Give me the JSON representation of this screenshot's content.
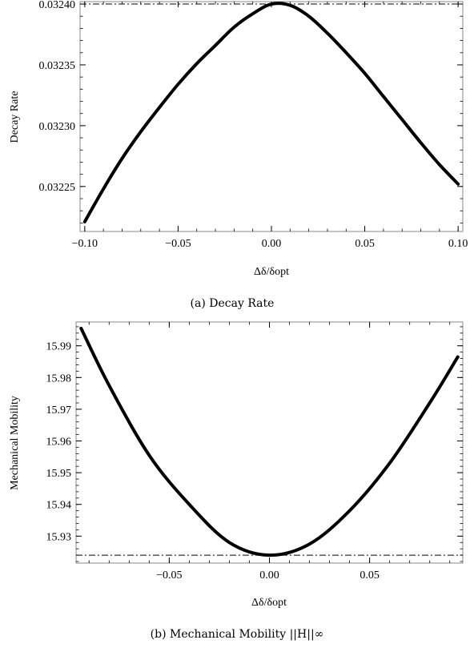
{
  "chart_data": [
    {
      "type": "line",
      "caption": "(a) Decay Rate",
      "xlabel": "Δδ/δopt",
      "ylabel": "Decay Rate",
      "xlim": [
        -0.1025,
        0.1025
      ],
      "ylim": [
        0.032213,
        0.032402
      ],
      "xticks": [
        -0.1,
        -0.05,
        0.0,
        0.05,
        0.1
      ],
      "xtick_labels": [
        "−0.10",
        "−0.05",
        "0.00",
        "0.05",
        "0.10"
      ],
      "yticks": [
        0.03225,
        0.0323,
        0.03235,
        0.0324
      ],
      "ytick_labels": [
        "0.03225",
        "0.03230",
        "0.03235",
        "0.03240"
      ],
      "reference_line": {
        "y": 0.0324,
        "style": "dash-dot"
      },
      "series": [
        {
          "x": [
            -0.1,
            -0.09,
            -0.08,
            -0.07,
            -0.06,
            -0.05,
            -0.04,
            -0.03,
            -0.02,
            -0.01,
            0.0,
            0.01,
            0.02,
            0.03,
            0.04,
            0.05,
            0.06,
            0.07,
            0.08,
            0.09,
            0.1
          ],
          "y": [
            0.032221,
            0.032248,
            0.032273,
            0.032295,
            0.032315,
            0.032334,
            0.032351,
            0.032366,
            0.032381,
            0.032392,
            0.0324,
            0.032399,
            0.03239,
            0.032376,
            0.03236,
            0.032343,
            0.032324,
            0.032305,
            0.032286,
            0.032268,
            0.032252
          ]
        }
      ],
      "grid": false
    },
    {
      "type": "line",
      "caption": "(b) Mechanical Mobility ||H||∞",
      "xlabel": "Δδ/δopt",
      "ylabel": "Mechanical Mobility",
      "xlim": [
        -0.0965,
        0.0965
      ],
      "ylim": [
        15.9215,
        15.9975
      ],
      "xticks": [
        -0.05,
        0.0,
        0.05
      ],
      "xtick_labels": [
        "−0.05",
        "0.00",
        "0.05"
      ],
      "yticks": [
        15.93,
        15.94,
        15.95,
        15.96,
        15.97,
        15.98,
        15.99
      ],
      "ytick_labels": [
        "15.93",
        "15.94",
        "15.95",
        "15.96",
        "15.97",
        "15.98",
        "15.99"
      ],
      "reference_line": {
        "y": 15.924,
        "style": "dash-dot"
      },
      "series": [
        {
          "x": [
            -0.094,
            -0.08,
            -0.06,
            -0.04,
            -0.02,
            0.0,
            0.02,
            0.04,
            0.06,
            0.08,
            0.094
          ],
          "y": [
            15.9955,
            15.9775,
            15.9555,
            15.94,
            15.928,
            15.924,
            15.9275,
            15.938,
            15.953,
            15.972,
            15.9865
          ]
        }
      ],
      "grid": false
    }
  ]
}
